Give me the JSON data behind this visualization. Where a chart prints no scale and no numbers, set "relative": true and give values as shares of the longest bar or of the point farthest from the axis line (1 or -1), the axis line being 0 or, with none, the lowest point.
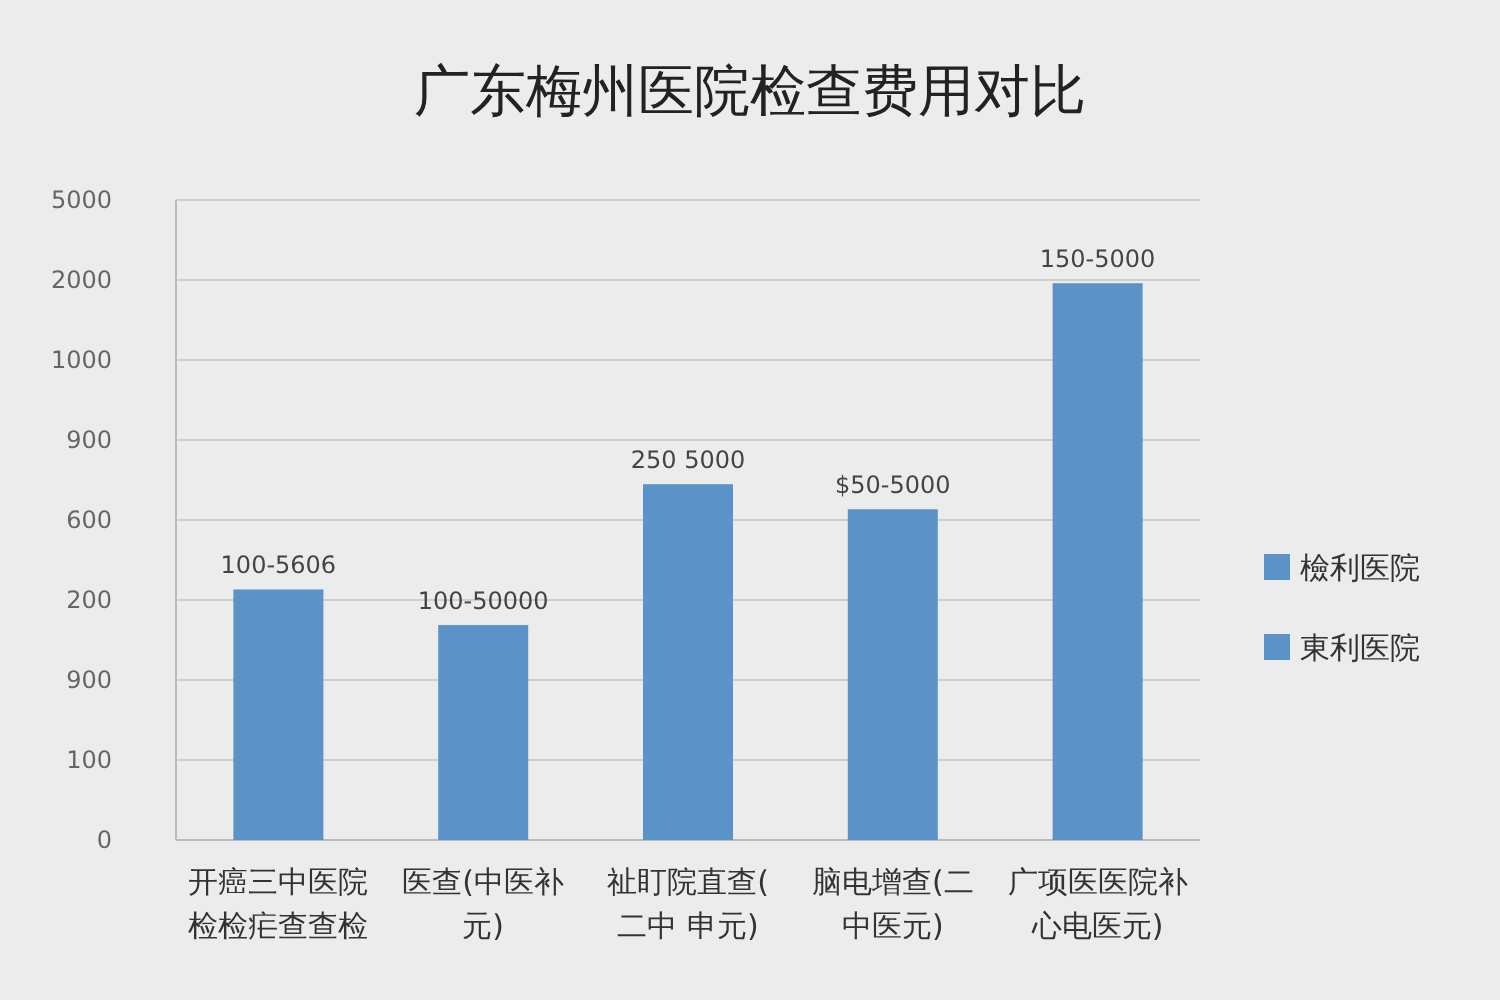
{
  "chart_data": {
    "type": "bar",
    "title": "广东梅州医院检查费用对比",
    "categories": [
      "开癌三中医院检检疟查查检",
      "医查(中医补元)",
      "祉盯院直查(二中 申元)",
      "脑电增查(二中医元)",
      "广项医医院补心电医元)"
    ],
    "series": [
      {
        "name": "檢利医院",
        "color": "#5b93c8",
        "values": [
          0.45,
          0.386,
          0.639,
          0.594,
          1
        ]
      },
      {
        "name": "東利医院",
        "color": "#5b93c8",
        "values": [
          null,
          null,
          null,
          null,
          null
        ]
      }
    ],
    "relative": true,
    "annotations": [
      "5000",
      "2000",
      "1000",
      "900",
      "600",
      "200",
      "900",
      "100",
      "0",
      {
        "text": "100-5606",
        "x": "开癌三中医院检检疟查查检",
        "y": 0.45
      },
      {
        "text": "100-50000",
        "x": "医查(中医补元)",
        "y": 0.386
      },
      {
        "text": "250 5000",
        "x": "祉盯院直查(二中 申元)",
        "y": 0.639
      },
      {
        "text": "$50-5000",
        "x": "脑电增查(二中医元)",
        "y": 0.594
      },
      {
        "text": "150-5000",
        "x": "广项医医院补心电医元)",
        "y": 1
      }
    ],
    "grid": "y",
    "legend": "right"
  }
}
